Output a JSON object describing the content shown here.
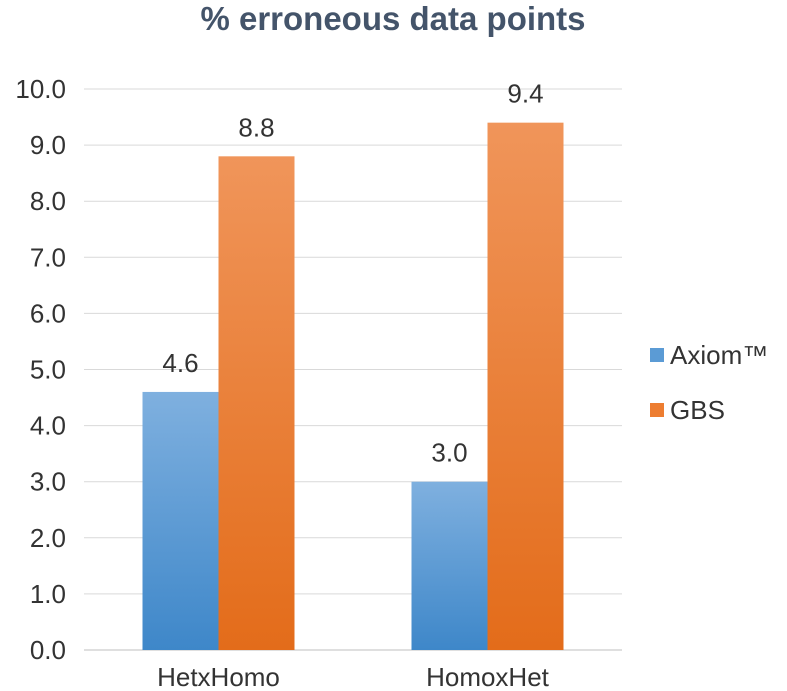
{
  "chart_data": {
    "type": "bar",
    "title": "% erroneous data points",
    "categories": [
      "HetxHomo",
      "HomoxHet"
    ],
    "series": [
      {
        "name": "Axiom™",
        "values": [
          4.6,
          3.0
        ],
        "color": "#5b9bd5",
        "labels": [
          "4.6",
          "3.0"
        ]
      },
      {
        "name": "GBS",
        "values": [
          8.8,
          9.4
        ],
        "color": "#ed7d31",
        "labels": [
          "8.8",
          "9.4"
        ]
      }
    ],
    "ylim": [
      0,
      10
    ],
    "yticks": [
      "0.0",
      "1.0",
      "2.0",
      "3.0",
      "4.0",
      "5.0",
      "6.0",
      "7.0",
      "8.0",
      "9.0",
      "10.0"
    ],
    "grid": true,
    "legend_position": "right",
    "xlabel": "",
    "ylabel": ""
  }
}
